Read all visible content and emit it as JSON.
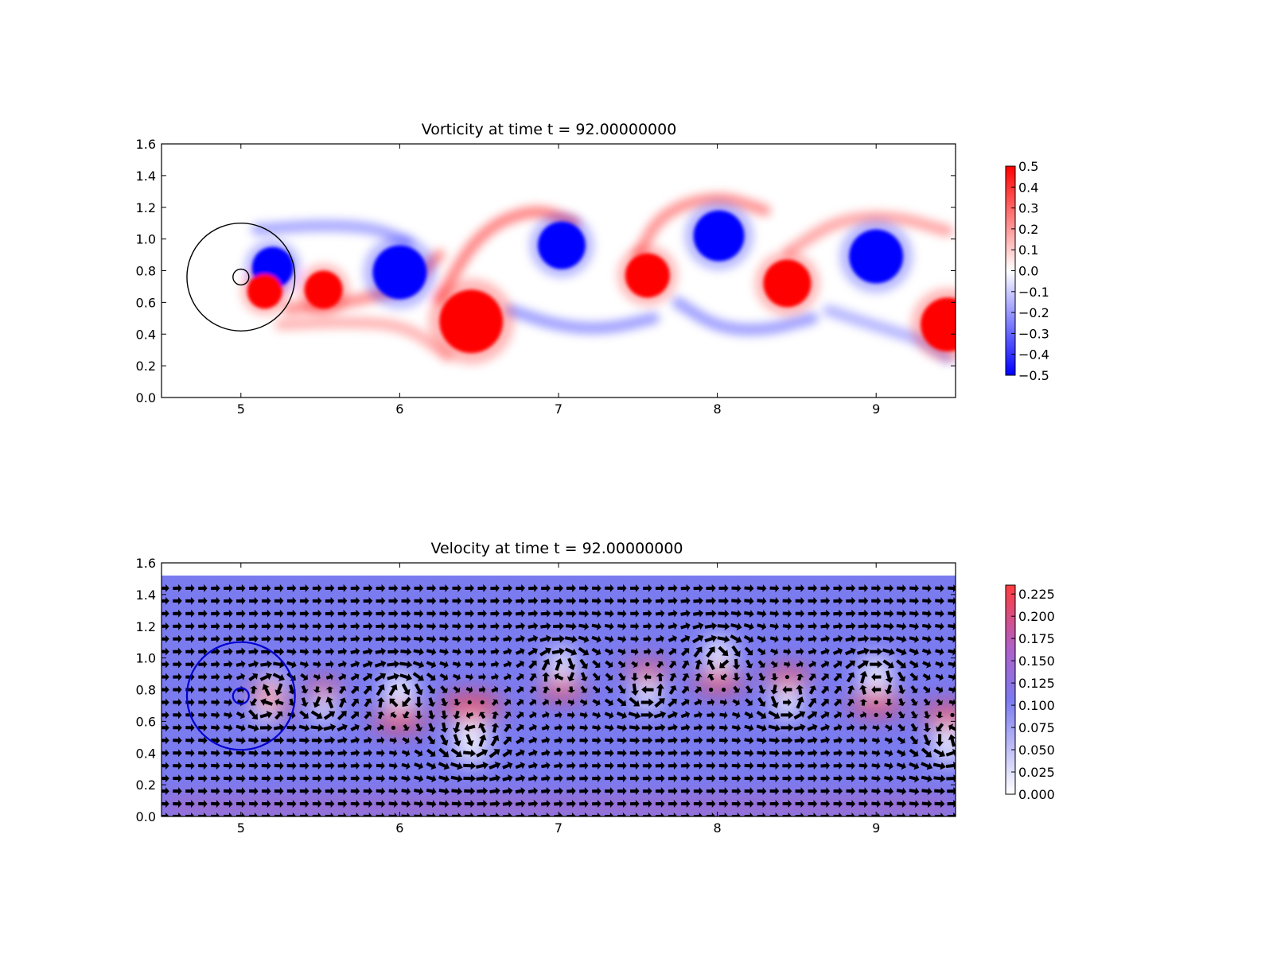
{
  "figure": {
    "background": "#ffffff"
  },
  "chart_data": [
    {
      "type": "heatmap",
      "title": "Vorticity at time t =    92.00000000",
      "xlabel": "",
      "ylabel": "",
      "xlim": [
        4.5,
        9.5
      ],
      "ylim": [
        0.0,
        1.6
      ],
      "xticks": [
        "5",
        "6",
        "7",
        "8",
        "9"
      ],
      "xtick_values": [
        5,
        6,
        7,
        8,
        9
      ],
      "yticks": [
        "0.0",
        "0.2",
        "0.4",
        "0.6",
        "0.8",
        "1.0",
        "1.2",
        "1.4",
        "1.6"
      ],
      "ytick_values": [
        0.0,
        0.2,
        0.4,
        0.6,
        0.8,
        1.0,
        1.2,
        1.4,
        1.6
      ],
      "colormap": {
        "low": "#0000ff",
        "mid": "#ffffff",
        "high": "#ff0000"
      },
      "colorbar": {
        "range": [
          -0.5,
          0.5
        ],
        "ticks": [
          "0.5",
          "0.4",
          "0.3",
          "0.2",
          "0.1",
          "0.0",
          "−0.1",
          "−0.2",
          "−0.3",
          "−0.4",
          "−0.5"
        ],
        "tick_values": [
          0.5,
          0.4,
          0.3,
          0.2,
          0.1,
          0.0,
          -0.1,
          -0.2,
          -0.3,
          -0.4,
          -0.5
        ]
      },
      "vortices": [
        {
          "x": 5.2,
          "y": 0.82,
          "w": -0.5,
          "r": 0.13
        },
        {
          "x": 5.15,
          "y": 0.67,
          "w": 0.5,
          "r": 0.11
        },
        {
          "x": 5.52,
          "y": 0.68,
          "w": 0.5,
          "r": 0.12
        },
        {
          "x": 6.0,
          "y": 0.79,
          "w": -0.5,
          "r": 0.17
        },
        {
          "x": 6.45,
          "y": 0.48,
          "w": 0.5,
          "r": 0.2
        },
        {
          "x": 7.02,
          "y": 0.96,
          "w": -0.5,
          "r": 0.15
        },
        {
          "x": 7.56,
          "y": 0.77,
          "w": 0.5,
          "r": 0.14
        },
        {
          "x": 8.01,
          "y": 1.02,
          "w": -0.5,
          "r": 0.16
        },
        {
          "x": 8.44,
          "y": 0.72,
          "w": 0.5,
          "r": 0.15
        },
        {
          "x": 9.0,
          "y": 0.89,
          "w": -0.5,
          "r": 0.17
        },
        {
          "x": 9.45,
          "y": 0.46,
          "w": 0.5,
          "r": 0.17
        }
      ],
      "shear_layers": [
        {
          "points": [
            [
              5.1,
              1.06
            ],
            [
              5.5,
              1.09
            ],
            [
              5.85,
              1.07
            ],
            [
              6.05,
              0.98
            ]
          ],
          "w": -0.18
        },
        {
          "points": [
            [
              5.3,
              0.56
            ],
            [
              5.7,
              0.6
            ],
            [
              6.05,
              0.7
            ],
            [
              6.25,
              0.9
            ]
          ],
          "w": 0.22
        },
        {
          "points": [
            [
              5.25,
              0.46
            ],
            [
              5.7,
              0.48
            ],
            [
              6.05,
              0.45
            ],
            [
              6.3,
              0.26
            ]
          ],
          "w": 0.15
        },
        {
          "points": [
            [
              6.25,
              0.62
            ],
            [
              6.5,
              1.05
            ],
            [
              6.85,
              1.2
            ],
            [
              7.1,
              1.1
            ]
          ],
          "w": 0.25
        },
        {
          "points": [
            [
              6.7,
              0.55
            ],
            [
              7.0,
              0.45
            ],
            [
              7.3,
              0.43
            ],
            [
              7.6,
              0.5
            ]
          ],
          "w": -0.2
        },
        {
          "points": [
            [
              7.5,
              0.9
            ],
            [
              7.65,
              1.17
            ],
            [
              8.0,
              1.28
            ],
            [
              8.3,
              1.18
            ]
          ],
          "w": 0.22
        },
        {
          "points": [
            [
              7.75,
              0.6
            ],
            [
              8.0,
              0.44
            ],
            [
              8.3,
              0.42
            ],
            [
              8.6,
              0.5
            ]
          ],
          "w": -0.2
        },
        {
          "points": [
            [
              8.45,
              0.92
            ],
            [
              8.75,
              1.12
            ],
            [
              9.1,
              1.15
            ],
            [
              9.45,
              1.05
            ]
          ],
          "w": 0.18
        },
        {
          "points": [
            [
              8.7,
              0.55
            ],
            [
              9.0,
              0.45
            ],
            [
              9.3,
              0.36
            ],
            [
              9.45,
              0.25
            ]
          ],
          "w": -0.15
        }
      ],
      "circles": [
        {
          "x": 5.0,
          "y": 0.76,
          "r": 0.34,
          "color": "#000000"
        },
        {
          "x": 5.0,
          "y": 0.76,
          "r": 0.05,
          "color": "#000000"
        }
      ]
    },
    {
      "type": "heatmap",
      "title": "Velocity at time t =    92.00000000",
      "xlabel": "",
      "ylabel": "",
      "xlim": [
        4.5,
        9.5
      ],
      "ylim": [
        0.0,
        1.6
      ],
      "data_ylim": [
        0.0,
        1.52
      ],
      "xticks": [
        "5",
        "6",
        "7",
        "8",
        "9"
      ],
      "xtick_values": [
        5,
        6,
        7,
        8,
        9
      ],
      "yticks": [
        "0.0",
        "0.2",
        "0.4",
        "0.6",
        "0.8",
        "1.0",
        "1.2",
        "1.4",
        "1.6"
      ],
      "ytick_values": [
        0.0,
        0.2,
        0.4,
        0.6,
        0.8,
        1.0,
        1.2,
        1.4,
        1.6
      ],
      "colormap": {
        "low": "#ffffff",
        "mid": "#7b7bf0",
        "high": "#ff3c3c"
      },
      "colorbar": {
        "range": [
          0.0,
          0.235
        ],
        "ticks": [
          "0.225",
          "0.200",
          "0.175",
          "0.150",
          "0.125",
          "0.100",
          "0.075",
          "0.050",
          "0.025",
          "0.000"
        ],
        "tick_values": [
          0.225,
          0.2,
          0.175,
          0.15,
          0.125,
          0.1,
          0.075,
          0.05,
          0.025,
          0.0
        ]
      },
      "quiver_spacing": 0.08,
      "circles": [
        {
          "x": 5.0,
          "y": 0.76,
          "r": 0.34,
          "color": "#0000cc"
        },
        {
          "x": 5.0,
          "y": 0.76,
          "r": 0.05,
          "color": "#0000cc"
        }
      ]
    }
  ]
}
